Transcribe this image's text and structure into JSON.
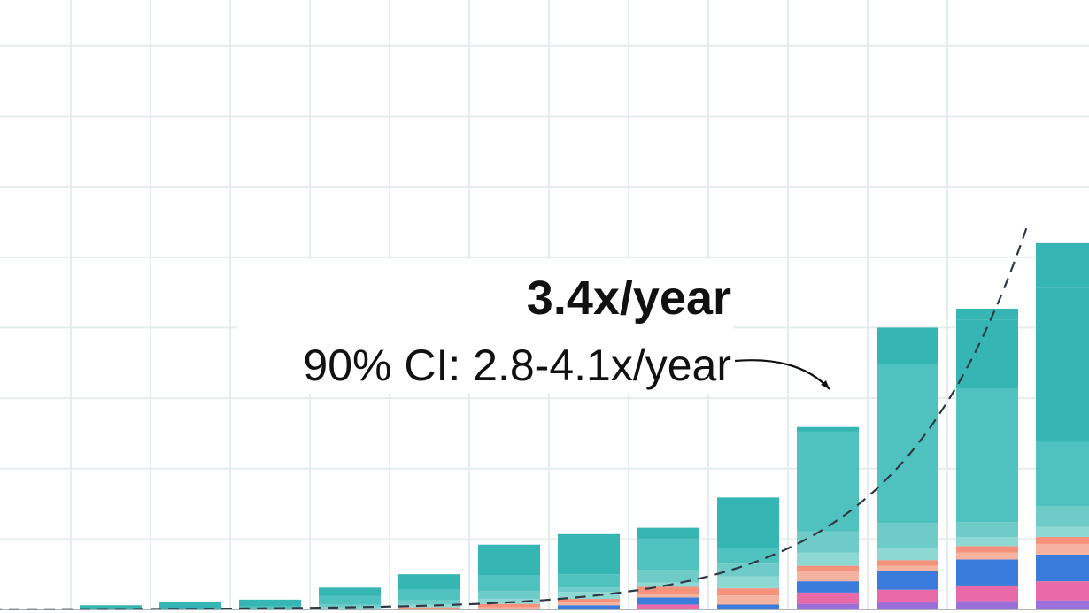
{
  "chart_data": {
    "type": "bar",
    "stacked": true,
    "grid": true,
    "annotations": {
      "rate": "3.4x/year",
      "ci": "90% CI: 2.8-4.1x/year"
    },
    "trend": {
      "kind": "exponential",
      "style": "dashed",
      "color": "#2f3a45",
      "growth_per_year": 3.4
    },
    "ylim": [
      0,
      840
    ],
    "colors": [
      "#9b6fd9",
      "#e86aa8",
      "#3a7bdc",
      "#f6b2a0",
      "#f4927c",
      "#8ed8d4",
      "#6fcbc8",
      "#4fc1bf",
      "#35b5b4"
    ],
    "segments": [
      [
        6
      ],
      [
        10
      ],
      [
        4,
        10
      ],
      [
        3,
        4,
        12,
        12
      ],
      [
        3,
        4,
        6,
        15,
        22
      ],
      [
        3,
        5,
        7,
        11,
        22,
        44
      ],
      [
        6,
        5,
        4,
        10,
        6,
        19,
        57
      ],
      [
        7,
        10,
        5,
        10,
        6,
        18,
        45,
        15
      ],
      [
        7,
        13,
        10,
        17,
        18,
        22,
        72
      ],
      [
        8,
        16,
        16,
        14,
        8,
        19,
        30,
        142,
        6
      ],
      [
        10,
        18,
        26,
        8,
        8,
        17,
        36,
        225,
        52
      ],
      [
        12,
        22,
        37,
        10,
        9,
        13,
        21,
        189,
        98,
        16
      ],
      [
        13,
        27,
        38,
        15,
        10,
        14,
        29,
        92,
        218,
        64
      ]
    ]
  }
}
